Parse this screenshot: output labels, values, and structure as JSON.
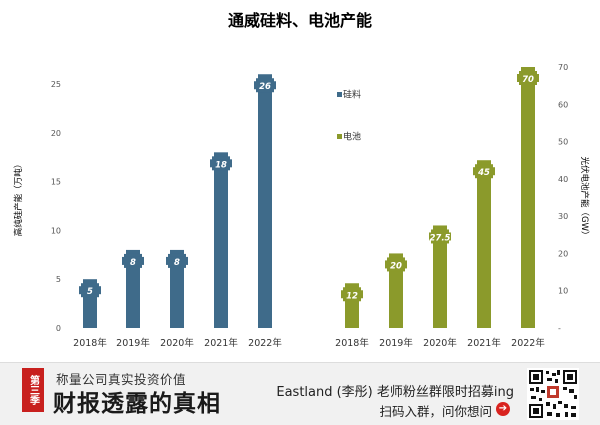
{
  "colors": {
    "silicon": "#3f6b8a",
    "battery": "#8b9a2b",
    "label_bg": "#ffffff",
    "axis_text": "#555555",
    "title": "#404040"
  },
  "chart_data": {
    "type": "bar",
    "title": "通威硅料、电池产能",
    "left_axis": {
      "ylabel": "高纯硅产能（万吨）",
      "ylim": [
        0,
        25
      ],
      "ticks": [
        0,
        5,
        10,
        15,
        20,
        25
      ],
      "tick_labels": [
        "0",
        "5",
        "10",
        "15",
        "20",
        "25"
      ]
    },
    "right_axis": {
      "ylabel": "光伏电池产能（GW）",
      "ylim": [
        0,
        70
      ],
      "ticks": [
        0,
        10,
        20,
        30,
        40,
        50,
        60,
        70
      ],
      "tick_labels": [
        "-",
        "10",
        "20",
        "30",
        "40",
        "50",
        "60",
        "70"
      ]
    },
    "series": [
      {
        "name": "硅料",
        "axis": "left",
        "categories": [
          "2018年",
          "2019年",
          "2020年",
          "2021年",
          "2022年"
        ],
        "values": [
          5,
          8,
          8,
          18,
          26
        ],
        "labels": [
          "5",
          "8",
          "8",
          "18",
          "26"
        ]
      },
      {
        "name": "电池",
        "axis": "right",
        "categories": [
          "2018年",
          "2019年",
          "2020年",
          "2021年",
          "2022年"
        ],
        "values": [
          12,
          20,
          27.5,
          45,
          70
        ],
        "labels": [
          "12",
          "20",
          "27.5",
          "45",
          "70"
        ]
      }
    ],
    "legend_placement": "center"
  },
  "footer": {
    "badge": "第三季",
    "brand_sub": "称量公司真实投资价值",
    "brand_main": "财报透露的真相",
    "promo_line1": "Eastland (李彤) 老师粉丝群限时招募ing",
    "promo_line2": "扫码入群，问你想问",
    "arrow_glyph": "➔"
  }
}
